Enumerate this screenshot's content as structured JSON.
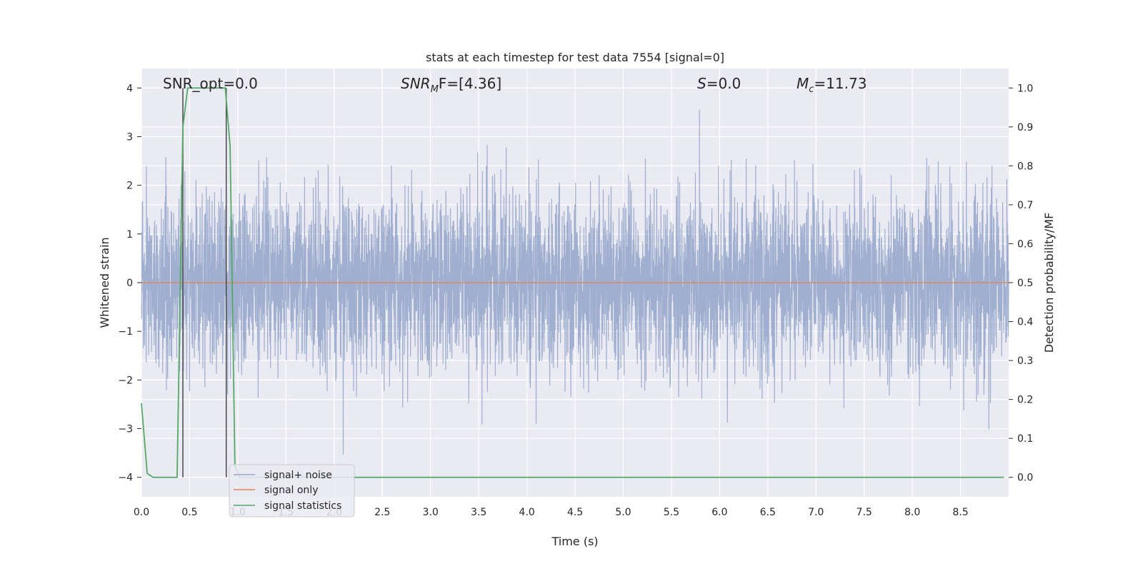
{
  "chart_data": {
    "type": "line",
    "title": "stats at each timestep for test data 7554 [signal=0]",
    "xlabel": "Time (s)",
    "ylabel": "Whitened strain",
    "y2label": "Detection probability/MF",
    "xlim": [
      0.0,
      9.0
    ],
    "ylim": [
      -4.4,
      4.4
    ],
    "y2lim": [
      -0.05,
      1.05
    ],
    "x_ticks": [
      0.0,
      0.5,
      1.0,
      1.5,
      2.0,
      2.5,
      3.0,
      3.5,
      4.0,
      4.5,
      5.0,
      5.5,
      6.0,
      6.5,
      7.0,
      7.5,
      8.0,
      8.5
    ],
    "x_tick_labels": [
      "0.0",
      "0.5",
      "1.0",
      "1.5",
      "2.0",
      "2.5",
      "3.0",
      "3.5",
      "4.0",
      "4.5",
      "5.0",
      "5.5",
      "6.0",
      "6.5",
      "7.0",
      "7.5",
      "8.0",
      "8.5"
    ],
    "y_ticks": [
      4,
      3,
      2,
      1,
      0,
      -1,
      -2,
      -3,
      -4
    ],
    "y_tick_labels": [
      "4",
      "3",
      "2",
      "1",
      "0",
      "−1",
      "−2",
      "−3",
      "−4"
    ],
    "y2_ticks": [
      1.0,
      0.9,
      0.8,
      0.7,
      0.6,
      0.5,
      0.4,
      0.3,
      0.2,
      0.1,
      0.0
    ],
    "y2_tick_labels": [
      "1.0",
      "0.9",
      "0.8",
      "0.7",
      "0.6",
      "0.5",
      "0.4",
      "0.3",
      "0.2",
      "0.1",
      "0.0"
    ],
    "grid": true,
    "legend_position": "lower-left",
    "annotations": {
      "snr_opt": "SNR_opt=0.0",
      "snr_mf_main": "SNR",
      "snr_mf_sub": "M",
      "snr_mf_rest": "F=[4.36]",
      "s_main": "S",
      "s_rest": "=0.0",
      "mc_main": "M",
      "mc_sub": "c",
      "mc_rest": "=11.73"
    },
    "series": [
      {
        "name": "signal+ noise",
        "axis": "left",
        "color": "#98a8cc",
        "noise_amplitude_typical": 1.6,
        "noise_amplitude_max": 4.0,
        "x_range": [
          0.0,
          9.0
        ]
      },
      {
        "name": "signal only",
        "axis": "left",
        "color": "#dd8452",
        "x": [
          0.0,
          9.0
        ],
        "y": [
          0.0,
          0.0
        ]
      },
      {
        "name": "signal statistics",
        "axis": "right",
        "color": "#55a868",
        "x": [
          0.0,
          0.06,
          0.12,
          0.25,
          0.37,
          0.43,
          0.48,
          0.55,
          0.65,
          0.75,
          0.87,
          0.92,
          0.97,
          1.02,
          1.2,
          2.0,
          3.0,
          4.0,
          5.0,
          6.0,
          7.0,
          8.0,
          8.95
        ],
        "y": [
          0.19,
          0.01,
          0.0,
          0.0,
          0.0,
          0.9,
          1.0,
          1.0,
          1.0,
          1.0,
          1.0,
          0.85,
          0.03,
          0.0,
          0.0,
          0.0,
          0.0,
          0.0,
          0.0,
          0.0,
          0.0,
          0.0,
          0.0
        ]
      }
    ],
    "vertical_lines": [
      {
        "x": 0.43,
        "ymin": -4.0,
        "ymax": 4.0,
        "color": "#4a4a4a"
      },
      {
        "x": 0.88,
        "ymin": -4.0,
        "ymax": 4.0,
        "color": "#4a4a4a"
      }
    ],
    "colors": {
      "plot_background": "#eaeaf2",
      "grid": "#ffffff",
      "text": "#262626"
    }
  }
}
